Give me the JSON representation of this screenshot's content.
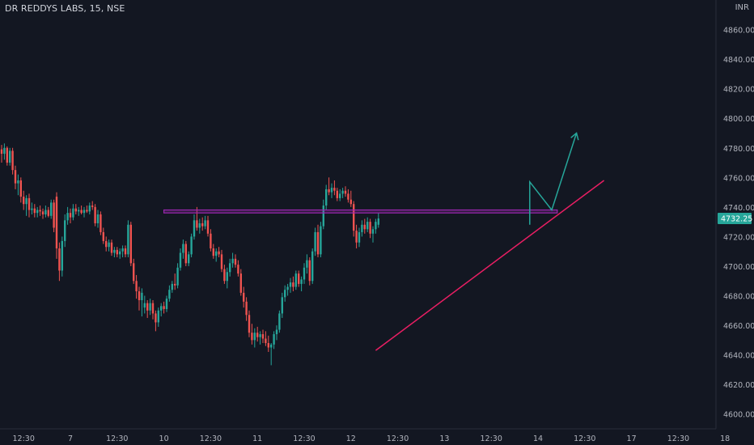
{
  "header": {
    "title": "DR REDDYS LABS, 15, NSE",
    "currency": "INR"
  },
  "colors": {
    "background": "#131722",
    "up": "#26a69a",
    "down": "#ef5350",
    "resistance": "#9c27b0",
    "trendline": "#e91e63",
    "arrow": "#26a69a",
    "price_tag": "#26a69a",
    "axis_text": "#b2b5be"
  },
  "chart_data": {
    "type": "candlestick",
    "ylim": [
      4590,
      4880
    ],
    "y_ticks": [
      4860,
      4840,
      4820,
      4800,
      4780,
      4760,
      4740,
      4720,
      4700,
      4680,
      4660,
      4640,
      4620,
      4600
    ],
    "y_tick_labels": [
      "4860.00",
      "4840.00",
      "4820.00",
      "4800.00",
      "4780.00",
      "4760.00",
      "4740.00",
      "4720.00",
      "4700.00",
      "4680.00",
      "4660.00",
      "4640.00",
      "4620.00",
      "4600.00"
    ],
    "x_slots": 205,
    "x_ticks": [
      {
        "slot": 8,
        "label": "12:30"
      },
      {
        "slot": 25,
        "label": "7"
      },
      {
        "slot": 42,
        "label": "12:30"
      },
      {
        "slot": 59,
        "label": "10"
      },
      {
        "slot": 76,
        "label": "12:30"
      },
      {
        "slot": 93,
        "label": "11"
      },
      {
        "slot": 110,
        "label": "12:30"
      },
      {
        "slot": 127,
        "label": "12"
      },
      {
        "slot": 144,
        "label": "12:30"
      },
      {
        "slot": 161,
        "label": "13"
      },
      {
        "slot": 178,
        "label": "12:30"
      },
      {
        "slot": 195,
        "label": "14"
      },
      {
        "slot": 212,
        "label": "12:30"
      },
      {
        "slot": 229,
        "label": "17"
      },
      {
        "slot": 246,
        "label": "12:30"
      },
      {
        "slot": 263,
        "label": "18"
      }
    ],
    "last_price": 4732.25,
    "last_price_label": "4732.25",
    "candles": [
      [
        4779,
        4782,
        4770,
        4776
      ],
      [
        4776,
        4783,
        4772,
        4780
      ],
      [
        4780,
        4781,
        4768,
        4770
      ],
      [
        4770,
        4780,
        4768,
        4778
      ],
      [
        4778,
        4780,
        4762,
        4765
      ],
      [
        4765,
        4768,
        4752,
        4756
      ],
      [
        4756,
        4762,
        4748,
        4758
      ],
      [
        4758,
        4760,
        4743,
        4747
      ],
      [
        4747,
        4751,
        4738,
        4742
      ],
      [
        4742,
        4748,
        4734,
        4746
      ],
      [
        4746,
        4749,
        4733,
        4738
      ],
      [
        4738,
        4743,
        4735,
        4739
      ],
      [
        4739,
        4742,
        4733,
        4736
      ],
      [
        4736,
        4740,
        4733,
        4738
      ],
      [
        4738,
        4741,
        4734,
        4737
      ],
      [
        4737,
        4739,
        4732,
        4735
      ],
      [
        4735,
        4741,
        4733,
        4738
      ],
      [
        4738,
        4740,
        4733,
        4734
      ],
      [
        4734,
        4745,
        4732,
        4743
      ],
      [
        4743,
        4745,
        4723,
        4726
      ],
      [
        4747,
        4750,
        4705,
        4712
      ],
      [
        4712,
        4716,
        4690,
        4697
      ],
      [
        4697,
        4720,
        4693,
        4717
      ],
      [
        4717,
        4735,
        4713,
        4731
      ],
      [
        4731,
        4740,
        4728,
        4736
      ],
      [
        4736,
        4739,
        4729,
        4733
      ],
      [
        4733,
        4742,
        4731,
        4739
      ],
      [
        4739,
        4742,
        4735,
        4737
      ],
      [
        4737,
        4740,
        4734,
        4738
      ],
      [
        4738,
        4741,
        4735,
        4736
      ],
      [
        4736,
        4740,
        4733,
        4738
      ],
      [
        4738,
        4741,
        4736,
        4737
      ],
      [
        4737,
        4743,
        4735,
        4741
      ],
      [
        4741,
        4744,
        4738,
        4740
      ],
      [
        4740,
        4742,
        4727,
        4729
      ],
      [
        4729,
        4738,
        4726,
        4735
      ],
      [
        4735,
        4737,
        4721,
        4723
      ],
      [
        4723,
        4726,
        4715,
        4717
      ],
      [
        4717,
        4720,
        4710,
        4713
      ],
      [
        4713,
        4718,
        4710,
        4716
      ],
      [
        4716,
        4718,
        4707,
        4709
      ],
      [
        4709,
        4713,
        4706,
        4711
      ],
      [
        4711,
        4713,
        4706,
        4708
      ],
      [
        4708,
        4712,
        4705,
        4710
      ],
      [
        4710,
        4714,
        4706,
        4712
      ],
      [
        4712,
        4714,
        4706,
        4708
      ],
      [
        4708,
        4731,
        4706,
        4728
      ],
      [
        4728,
        4730,
        4700,
        4702
      ],
      [
        4702,
        4705,
        4688,
        4690
      ],
      [
        4690,
        4694,
        4678,
        4683
      ],
      [
        4683,
        4686,
        4670,
        4677
      ],
      [
        4677,
        4685,
        4666,
        4682
      ],
      [
        4672,
        4680,
        4668,
        4675
      ],
      [
        4675,
        4677,
        4665,
        4670
      ],
      [
        4670,
        4678,
        4667,
        4675
      ],
      [
        4675,
        4677,
        4664,
        4668
      ],
      [
        4668,
        4670,
        4656,
        4662
      ],
      [
        4662,
        4672,
        4659,
        4670
      ],
      [
        4670,
        4675,
        4666,
        4673
      ],
      [
        4673,
        4676,
        4668,
        4671
      ],
      [
        4671,
        4680,
        4669,
        4678
      ],
      [
        4678,
        4687,
        4676,
        4684
      ],
      [
        4684,
        4690,
        4682,
        4688
      ],
      [
        4688,
        4695,
        4684,
        4687
      ],
      [
        4687,
        4702,
        4685,
        4699
      ],
      [
        4699,
        4712,
        4697,
        4709
      ],
      [
        4709,
        4718,
        4705,
        4715
      ],
      [
        4715,
        4717,
        4700,
        4702
      ],
      [
        4702,
        4710,
        4700,
        4708
      ],
      [
        4708,
        4722,
        4706,
        4720
      ],
      [
        4720,
        4735,
        4718,
        4731
      ],
      [
        4731,
        4740,
        4724,
        4726
      ],
      [
        4726,
        4732,
        4722,
        4729
      ],
      [
        4729,
        4733,
        4724,
        4727
      ],
      [
        4727,
        4734,
        4725,
        4731
      ],
      [
        4731,
        4734,
        4720,
        4722
      ],
      [
        4722,
        4725,
        4710,
        4712
      ],
      [
        4712,
        4715,
        4705,
        4707
      ],
      [
        4707,
        4712,
        4703,
        4710
      ],
      [
        4710,
        4713,
        4706,
        4708
      ],
      [
        4708,
        4711,
        4696,
        4698
      ],
      [
        4698,
        4701,
        4688,
        4690
      ],
      [
        4690,
        4699,
        4685,
        4696
      ],
      [
        4696,
        4705,
        4693,
        4702
      ],
      [
        4702,
        4709,
        4699,
        4705
      ],
      [
        4705,
        4708,
        4699,
        4701
      ],
      [
        4701,
        4704,
        4693,
        4695
      ],
      [
        4695,
        4698,
        4680,
        4682
      ],
      [
        4682,
        4686,
        4672,
        4676
      ],
      [
        4676,
        4679,
        4663,
        4667
      ],
      [
        4667,
        4670,
        4652,
        4655
      ],
      [
        4655,
        4661,
        4647,
        4650
      ],
      [
        4650,
        4658,
        4645,
        4655
      ],
      [
        4655,
        4659,
        4649,
        4652
      ],
      [
        4652,
        4656,
        4647,
        4654
      ],
      [
        4654,
        4657,
        4648,
        4651
      ],
      [
        4651,
        4656,
        4646,
        4648
      ],
      [
        4648,
        4653,
        4642,
        4645
      ],
      [
        4645,
        4648,
        4633,
        4647
      ],
      [
        4647,
        4656,
        4644,
        4654
      ],
      [
        4654,
        4660,
        4650,
        4657
      ],
      [
        4657,
        4670,
        4655,
        4668
      ],
      [
        4668,
        4682,
        4665,
        4679
      ],
      [
        4679,
        4687,
        4676,
        4684
      ],
      [
        4684,
        4688,
        4680,
        4686
      ],
      [
        4686,
        4692,
        4682,
        4689
      ],
      [
        4689,
        4693,
        4683,
        4686
      ],
      [
        4686,
        4697,
        4684,
        4695
      ],
      [
        4695,
        4697,
        4686,
        4688
      ],
      [
        4688,
        4693,
        4683,
        4691
      ],
      [
        4691,
        4702,
        4688,
        4699
      ],
      [
        4699,
        4708,
        4695,
        4704
      ],
      [
        4704,
        4706,
        4687,
        4690
      ],
      [
        4690,
        4712,
        4688,
        4710
      ],
      [
        4710,
        4726,
        4707,
        4723
      ],
      [
        4723,
        4728,
        4706,
        4708
      ],
      [
        4708,
        4730,
        4706,
        4727
      ],
      [
        4727,
        4745,
        4725,
        4741
      ],
      [
        4741,
        4755,
        4738,
        4752
      ],
      [
        4752,
        4760,
        4748,
        4750
      ],
      [
        4750,
        4756,
        4746,
        4753
      ],
      [
        4753,
        4758,
        4748,
        4751
      ],
      [
        4751,
        4753,
        4744,
        4746
      ],
      [
        4746,
        4752,
        4744,
        4749
      ],
      [
        4749,
        4753,
        4746,
        4751
      ],
      [
        4751,
        4754,
        4747,
        4749
      ],
      [
        4749,
        4752,
        4743,
        4745
      ],
      [
        4745,
        4751,
        4740,
        4742
      ],
      [
        4742,
        4744,
        4720,
        4724
      ],
      [
        4724,
        4728,
        4712,
        4716
      ],
      [
        4716,
        4726,
        4713,
        4723
      ],
      [
        4723,
        4731,
        4720,
        4728
      ],
      [
        4728,
        4732,
        4722,
        4725
      ],
      [
        4725,
        4733,
        4723,
        4730
      ],
      [
        4730,
        4732,
        4719,
        4722
      ],
      [
        4722,
        4727,
        4716,
        4725
      ],
      [
        4725,
        4732,
        4722,
        4730
      ],
      [
        4728,
        4736,
        4726,
        4732.25
      ]
    ],
    "resistance_zone": {
      "x1": 59,
      "x2": 202,
      "y1": 4736,
      "y2": 4738
    },
    "trendline": {
      "x1": 136,
      "y1": 4643,
      "x2": 219,
      "y2": 4758
    },
    "projection": [
      [
        192,
        4728
      ],
      [
        192,
        4757
      ],
      [
        200,
        4738
      ],
      [
        209,
        4790
      ]
    ]
  }
}
